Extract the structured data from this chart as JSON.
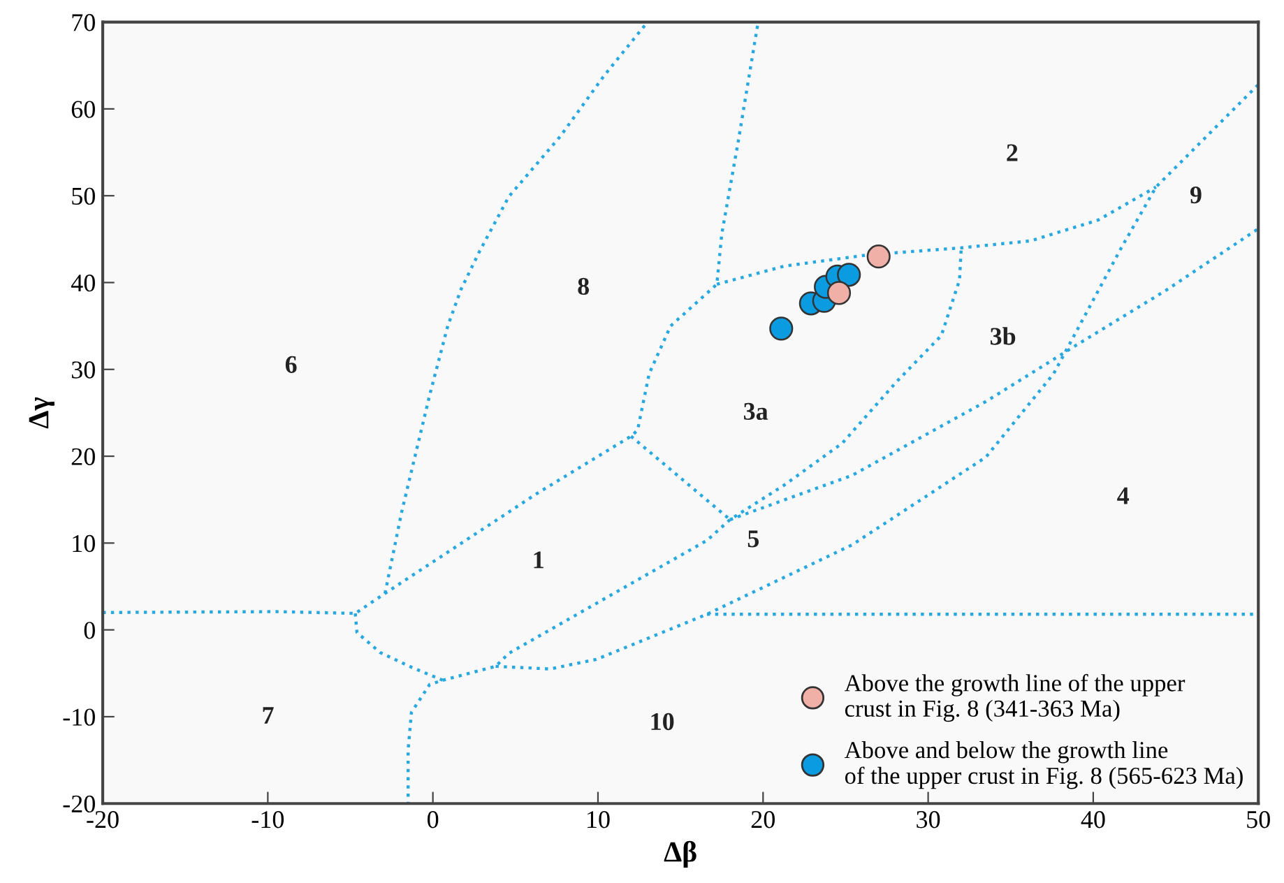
{
  "chart_data": {
    "type": "scatter",
    "xlabel": "Δβ",
    "ylabel": "Δγ",
    "xlim": [
      -20,
      50
    ],
    "ylim": [
      -20,
      70
    ],
    "xticks": [
      -20,
      -10,
      0,
      10,
      20,
      30,
      40,
      50
    ],
    "yticks": [
      -20,
      -10,
      0,
      10,
      20,
      30,
      40,
      50,
      60,
      70
    ],
    "legend": "bottom right",
    "series": [
      {
        "type": "line",
        "marker": "none",
        "line_style": "dotted",
        "color": "#29a8e0",
        "x": [
          -20,
          -9.5,
          -4.7,
          -2.9,
          6.3,
          12.0,
          12.4,
          13.1,
          14.4,
          17.2,
          17.5,
          18.5,
          19.7
        ],
        "values": [
          2.0,
          2.1,
          1.9,
          4.2,
          15.7,
          22.3,
          23.0,
          29.5,
          35.0,
          39.8,
          45.6,
          56.3,
          70
        ]
      },
      {
        "type": "line",
        "marker": "none",
        "line_style": "dotted",
        "color": "#29a8e0",
        "x": [
          -2.9,
          -1.9,
          -0.2,
          0.9,
          1.7,
          2.8,
          4.6,
          7.7,
          10.4,
          13.0
        ],
        "values": [
          4.2,
          13.5,
          27.0,
          35.0,
          39.2,
          43.5,
          49.9,
          56.8,
          63.9,
          70
        ]
      },
      {
        "type": "line",
        "marker": "none",
        "line_style": "dotted",
        "color": "#29a8e0",
        "x": [
          17.2,
          21.3,
          26.4,
          32.0,
          36.2,
          40.3,
          43.8
        ],
        "values": [
          39.8,
          41.9,
          43.2,
          44.0,
          44.8,
          47.2,
          51.0
        ]
      },
      {
        "type": "line",
        "marker": "none",
        "line_style": "dotted",
        "color": "#29a8e0",
        "x": [
          -4.7,
          -4.6,
          -3.2,
          -1.3,
          0.6,
          -0.2,
          -1.3,
          -1.5,
          -1.5
        ],
        "values": [
          1.9,
          -0.3,
          -2.6,
          -4.3,
          -5.8,
          -6.3,
          -9.5,
          -13.8,
          -20
        ]
      },
      {
        "type": "line",
        "marker": "none",
        "line_style": "dotted",
        "color": "#29a8e0",
        "x": [
          0.6,
          3.8,
          4.6,
          11.7,
          16.6,
          18.0,
          21.3,
          24.8,
          28.1,
          30.8,
          31.9,
          32.0
        ],
        "values": [
          -5.8,
          -4.2,
          -2.7,
          5.0,
          10.3,
          12.7,
          16.7,
          21.5,
          28.6,
          33.9,
          40.3,
          43.8
        ]
      },
      {
        "type": "line",
        "marker": "none",
        "line_style": "dotted",
        "color": "#29a8e0",
        "x": [
          3.8,
          7.1,
          9.9,
          16.6,
          25.4,
          33.5,
          37.6,
          41.7,
          43.8,
          50
        ],
        "values": [
          -4.2,
          -4.5,
          -3.4,
          1.8,
          9.8,
          19.9,
          29.5,
          44.0,
          51.0,
          62.8
        ]
      },
      {
        "type": "line",
        "marker": "none",
        "line_style": "dotted",
        "color": "#29a8e0",
        "x": [
          16.6,
          50
        ],
        "values": [
          1.8,
          1.8
        ]
      },
      {
        "type": "line",
        "marker": "none",
        "line_style": "dotted",
        "color": "#29a8e0",
        "x": [
          12.0,
          18.0
        ],
        "values": [
          22.3,
          12.7
        ]
      },
      {
        "type": "line",
        "marker": "none",
        "line_style": "dotted",
        "color": "#29a8e0",
        "x": [
          18.0,
          25.4,
          33.5,
          38.9,
          44.4,
          50
        ],
        "values": [
          12.7,
          17.8,
          26.3,
          32.7,
          39.1,
          46.2
        ]
      },
      {
        "marker": "circle",
        "name": "Above the growth line of the upper\ncrust in Fig. 8 (341-363 Ma)",
        "color": "#f0b0a8",
        "x": [
          24.6,
          27.0
        ],
        "values": [
          38.8,
          43.0
        ]
      },
      {
        "marker": "circle",
        "name": "Above and below the growth line\nof the upper crust in Fig. 8 (565-623 Ma)",
        "color": "#0a9be0",
        "x": [
          21.1,
          22.9,
          23.7,
          23.8,
          24.5,
          25.2
        ],
        "values": [
          34.7,
          37.6,
          37.9,
          39.5,
          40.7,
          40.9
        ]
      }
    ],
    "annotations": [
      "1",
      "2",
      "3a",
      "3b",
      "4",
      "5",
      "6",
      "7",
      "8",
      "9",
      "10"
    ]
  }
}
